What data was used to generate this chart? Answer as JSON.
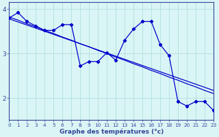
{
  "x": [
    0,
    1,
    2,
    3,
    4,
    5,
    6,
    7,
    8,
    9,
    10,
    11,
    12,
    13,
    14,
    15,
    16,
    17,
    18,
    19,
    20,
    21,
    22,
    23
  ],
  "y_main": [
    3.8,
    3.92,
    3.72,
    3.62,
    3.52,
    3.52,
    3.65,
    3.65,
    2.72,
    2.82,
    2.82,
    3.02,
    2.85,
    3.3,
    3.55,
    3.72,
    3.72,
    3.2,
    2.95,
    1.92,
    1.82,
    1.92,
    1.92,
    1.72
  ],
  "y_reg1": [
    3.82,
    3.75,
    3.67,
    3.6,
    3.52,
    3.45,
    3.37,
    3.3,
    3.22,
    3.15,
    3.07,
    3.0,
    2.92,
    2.85,
    2.77,
    2.7,
    2.62,
    2.55,
    2.47,
    2.4,
    2.32,
    2.25,
    2.17,
    2.1
  ],
  "y_reg2": [
    3.78,
    3.71,
    3.64,
    3.57,
    3.5,
    3.43,
    3.36,
    3.29,
    3.22,
    3.15,
    3.08,
    3.01,
    2.94,
    2.87,
    2.8,
    2.73,
    2.66,
    2.59,
    2.52,
    2.45,
    2.38,
    2.31,
    2.24,
    2.17
  ],
  "line_color": "#0000cc",
  "bg_color": "#daf5f5",
  "grid_color": "#b0dede",
  "axis_color": "#334499",
  "xlabel": "Graphe des températures (°c)",
  "ylim": [
    1.5,
    4.15
  ],
  "xlim": [
    0,
    23
  ],
  "yticks": [
    2,
    3,
    4
  ],
  "xticks": [
    0,
    1,
    2,
    3,
    4,
    5,
    6,
    7,
    8,
    9,
    10,
    11,
    12,
    13,
    14,
    15,
    16,
    17,
    18,
    19,
    20,
    21,
    22,
    23
  ]
}
